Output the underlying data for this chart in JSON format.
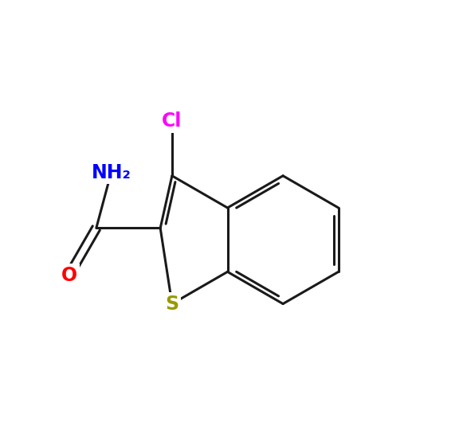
{
  "background_color": "#ffffff",
  "bond_color": "#1a1a1a",
  "bond_width": 2.2,
  "atoms": {
    "S": {
      "color": "#999900",
      "fontsize": 17,
      "fontweight": "bold"
    },
    "O": {
      "color": "#ff0000",
      "fontsize": 17,
      "fontweight": "bold"
    },
    "N": {
      "color": "#0000ff",
      "fontsize": 17,
      "fontweight": "bold"
    },
    "Cl": {
      "color": "#ff00ff",
      "fontsize": 17,
      "fontweight": "bold"
    }
  },
  "figsize": [
    5.71,
    5.3
  ],
  "dpi": 100
}
